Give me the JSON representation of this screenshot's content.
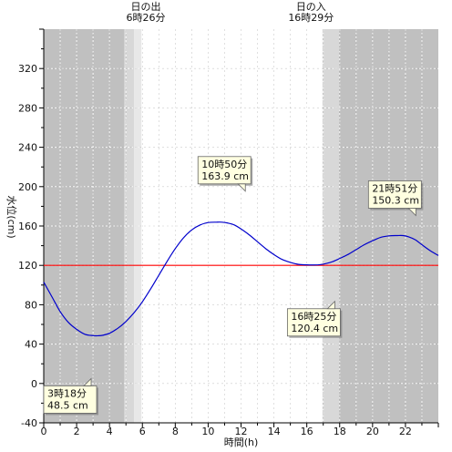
{
  "chart_data": {
    "type": "line",
    "xlabel": "時間(h)",
    "ylabel": "水位(cm)",
    "xlim": [
      0,
      24
    ],
    "ylim": [
      -40,
      360
    ],
    "xticks": [
      0,
      2,
      4,
      6,
      8,
      10,
      12,
      14,
      16,
      18,
      20,
      22
    ],
    "yticks": [
      -40,
      0,
      40,
      80,
      120,
      160,
      200,
      240,
      280,
      320
    ],
    "grid": true,
    "reference_line": {
      "value": 120,
      "color": "#ff0000"
    },
    "sun_events": [
      {
        "title": "日の出",
        "time_label": "6時26分",
        "hour": 6.43
      },
      {
        "title": "日の入",
        "time_label": "16時29分",
        "hour": 16.48
      }
    ],
    "shading": {
      "night_color": "#c0c0c0",
      "twilight_color": "#d8d8d8",
      "dawn_color": "#e8e8e8",
      "day_color": "#ffffff",
      "night_end": 4.9,
      "twilight_end": 5.5,
      "dawn_end": 5.95,
      "day_end": 16.95,
      "evening_twilight_end": 17.95
    },
    "series": [
      {
        "color": "#0000cc",
        "x": [
          0,
          0.5,
          1,
          1.5,
          2,
          2.5,
          3,
          3.3,
          3.6,
          4,
          4.5,
          5,
          5.5,
          6,
          6.5,
          7,
          7.5,
          8,
          8.5,
          9,
          9.5,
          10,
          10.5,
          10.83,
          11.2,
          11.6,
          12,
          12.5,
          13,
          13.5,
          14,
          14.5,
          15,
          15.5,
          16,
          16.42,
          16.8,
          17.2,
          17.6,
          18,
          18.5,
          19,
          19.5,
          20,
          20.5,
          21,
          21.5,
          21.85,
          22.2,
          22.6,
          23,
          23.5,
          24
        ],
        "y": [
          103,
          88,
          73,
          62,
          55,
          50,
          48.6,
          48.5,
          49,
          51,
          56,
          63,
          72,
          83,
          96,
          110,
          124,
          137,
          148,
          156,
          161,
          163.5,
          163.9,
          163.9,
          163,
          161,
          157,
          151,
          144,
          137,
          131,
          126,
          123,
          121,
          120.5,
          120.4,
          120.7,
          122,
          124,
          127,
          131,
          136,
          141,
          145,
          148.5,
          150,
          150.3,
          150.3,
          149,
          146,
          141,
          135,
          130
        ]
      }
    ],
    "annotations": [
      {
        "time": "3時18分",
        "level": "48.5 cm",
        "x": 3.3,
        "y": 48.5
      },
      {
        "time": "10時50分",
        "level": "163.9 cm",
        "x": 10.83,
        "y": 163.9
      },
      {
        "time": "16時25分",
        "level": "120.4 cm",
        "x": 16.42,
        "y": 120.4
      },
      {
        "time": "21時51分",
        "level": "150.3 cm",
        "x": 21.85,
        "y": 150.3
      }
    ]
  }
}
